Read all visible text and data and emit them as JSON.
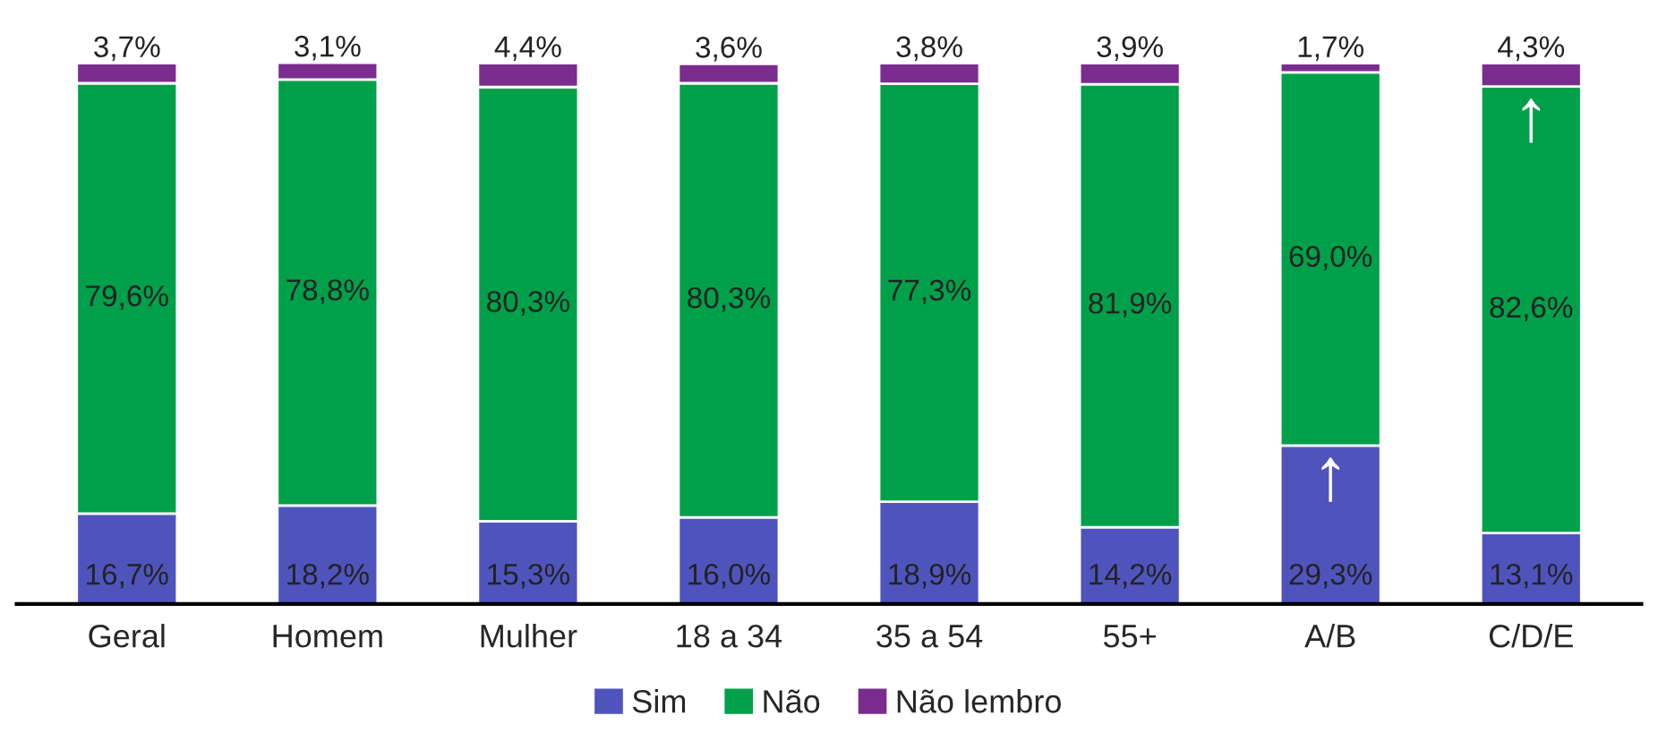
{
  "chart_data": {
    "type": "bar",
    "stacked": true,
    "legend": "bottom",
    "categories": [
      "Geral",
      "Homem",
      "Mulher",
      "18 a 34",
      "35 a 54",
      "55+",
      "A/B",
      "C/D/E"
    ],
    "series": [
      {
        "name": "Sim",
        "color": "#4f54bd",
        "values": [
          16.7,
          18.2,
          15.3,
          16.0,
          18.9,
          14.2,
          29.3,
          13.1
        ],
        "value_labels": [
          "16,7%",
          "18,2%",
          "15,3%",
          "16,0%",
          "18,9%",
          "14,2%",
          "29,3%",
          "13,1%"
        ]
      },
      {
        "name": "Não",
        "color": "#00a04a",
        "values": [
          79.6,
          78.8,
          80.3,
          80.3,
          77.3,
          81.9,
          69.0,
          82.6
        ],
        "value_labels": [
          "79,6%",
          "78,8%",
          "80,3%",
          "80,3%",
          "77,3%",
          "81,9%",
          "69,0%",
          "82,6%"
        ]
      },
      {
        "name": "Não lembro",
        "color": "#7b2c8f",
        "values": [
          3.7,
          3.1,
          4.4,
          3.6,
          3.8,
          3.9,
          1.7,
          4.3
        ],
        "value_labels": [
          "3,7%",
          "3,1%",
          "4,4%",
          "3,6%",
          "3,8%",
          "3,9%",
          "1,7%",
          "4,3%"
        ]
      }
    ],
    "annotations": [
      {
        "text": "↑",
        "x": "A/B",
        "y": 29.3
      },
      {
        "text": "↑",
        "x": "C/D/E",
        "y": 95.7
      }
    ]
  }
}
